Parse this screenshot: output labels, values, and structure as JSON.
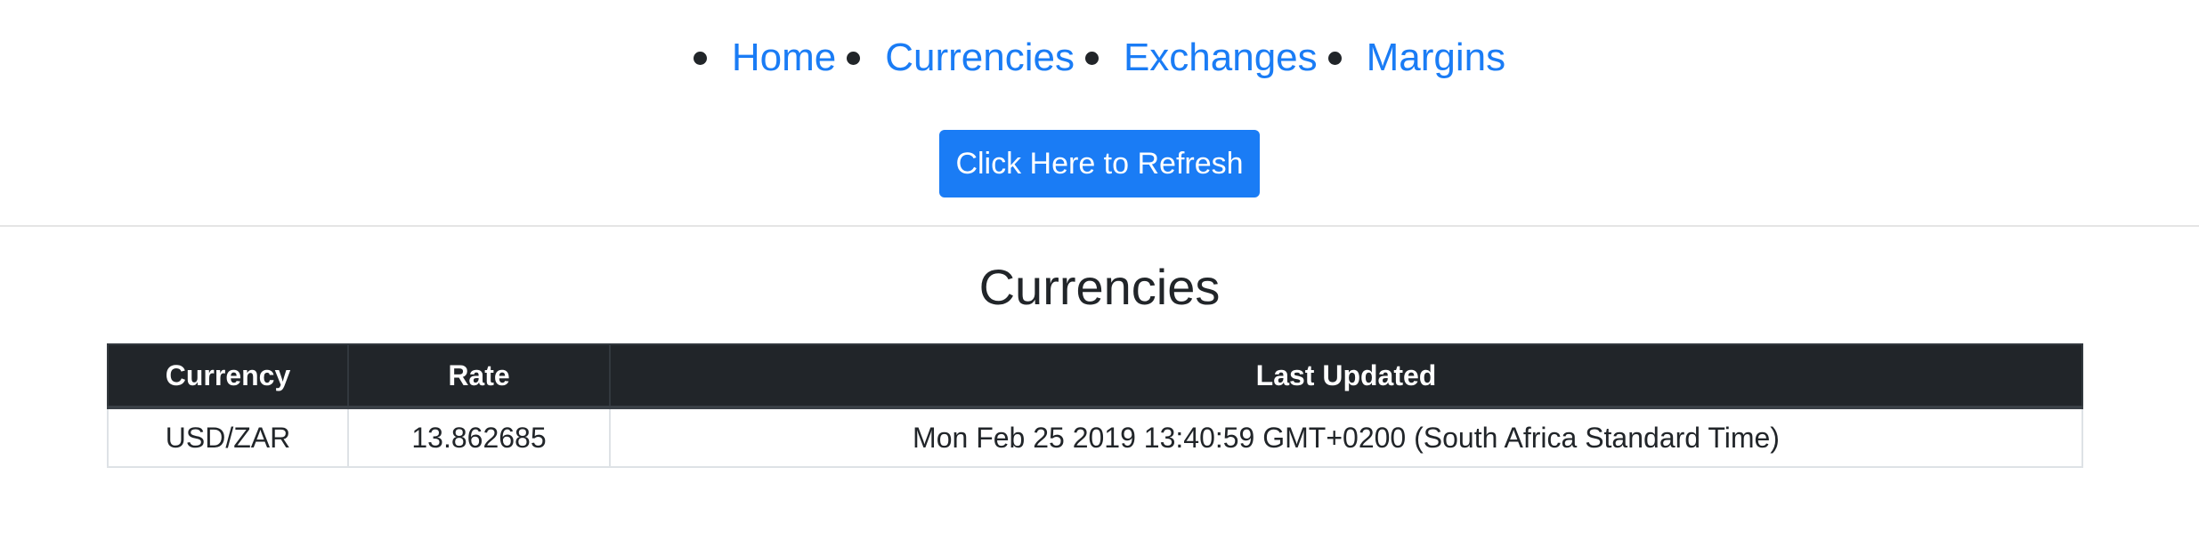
{
  "nav": {
    "items": [
      {
        "label": "Home"
      },
      {
        "label": "Currencies"
      },
      {
        "label": "Exchanges"
      },
      {
        "label": "Margins"
      }
    ]
  },
  "refresh_button": {
    "label": "Click Here to Refresh"
  },
  "page_title": "Currencies",
  "table": {
    "headers": [
      "Currency",
      "Rate",
      "Last Updated"
    ],
    "rows": [
      [
        "USD/ZAR",
        "13.862685",
        "Mon Feb 25 2019 13:40:59 GMT+0200 (South Africa Standard Time)"
      ]
    ]
  },
  "colors": {
    "link": "#1a7cf5",
    "button": "#1a7cf5",
    "table_header_bg": "#212529"
  }
}
